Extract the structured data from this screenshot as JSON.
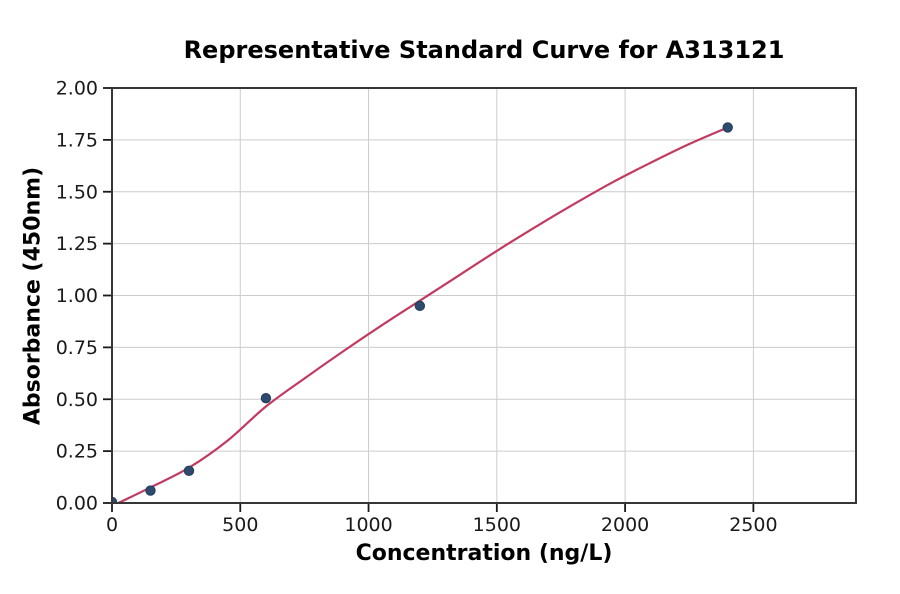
{
  "chart_data": {
    "type": "scatter",
    "title": "Representative Standard Curve for A313121",
    "xlabel": "Concentration (ng/L)",
    "ylabel": "Absorbance (450nm)",
    "xlim": [
      0,
      2900
    ],
    "ylim": [
      0,
      2.0
    ],
    "grid": true,
    "legend": false,
    "x_ticks": {
      "values": [
        0,
        500,
        1000,
        1500,
        2000,
        2500
      ],
      "labels": [
        "0",
        "500",
        "1000",
        "1500",
        "2000",
        "2500"
      ]
    },
    "y_ticks": {
      "values": [
        0,
        0.25,
        0.5,
        0.75,
        1.0,
        1.25,
        1.5,
        1.75,
        2.0
      ],
      "labels": [
        "0.00",
        "0.25",
        "0.50",
        "0.75",
        "1.00",
        "1.25",
        "1.50",
        "1.75",
        "2.00"
      ]
    },
    "series": [
      {
        "name": "standard-points",
        "type": "scatter",
        "color": "#2e4b6e",
        "edge_color": "#24405f",
        "marker_radius": 4.6,
        "x": [
          0,
          150,
          300,
          600,
          1200,
          2400
        ],
        "y": [
          0.005,
          0.06,
          0.155,
          0.505,
          0.95,
          1.81
        ]
      },
      {
        "name": "fit-curve",
        "type": "line",
        "color": "#c23a60",
        "width": 2.2,
        "x": [
          25,
          150,
          300,
          450,
          600,
          750,
          900,
          1050,
          1200,
          1350,
          1500,
          1650,
          1800,
          1950,
          2100,
          2250,
          2400
        ],
        "y": [
          0.0,
          0.075,
          0.17,
          0.3,
          0.465,
          0.6,
          0.73,
          0.855,
          0.975,
          1.095,
          1.215,
          1.33,
          1.44,
          1.545,
          1.64,
          1.73,
          1.81
        ]
      }
    ],
    "styles": {
      "background": "#ffffff",
      "grid_color": "#cccccc",
      "spine_color": "#363636",
      "tick_color": "#1a1a1a",
      "text_color": "#000000",
      "tick_font_size": 19
    }
  }
}
